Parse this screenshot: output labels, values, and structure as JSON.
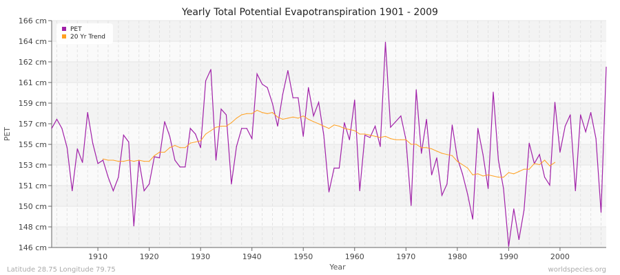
{
  "chart_data": {
    "type": "line",
    "title": "Yearly Total Potential Evapotranspiration 1901 - 2009",
    "xlabel": "Year",
    "ylabel": "PET",
    "xlim": [
      1901,
      2009
    ],
    "ylim": [
      146,
      166
    ],
    "x_ticks": [
      1910,
      1920,
      1930,
      1940,
      1950,
      1960,
      1970,
      1980,
      1990,
      2000
    ],
    "y_tick_labels": [
      "146 cm",
      "148 cm",
      "150 cm",
      "151 cm",
      "153 cm",
      "155 cm",
      "157 cm",
      "159 cm",
      "161 cm",
      "162 cm",
      "164 cm",
      "166 cm"
    ],
    "grid": true,
    "legend_placement": "top-left",
    "series": [
      {
        "name": "PET",
        "color": "#a020a8",
        "x_start": 1901,
        "values": [
          156.5,
          157.3,
          156.5,
          154.8,
          151.0,
          154.7,
          153.5,
          157.9,
          155.2,
          153.4,
          153.7,
          152.2,
          151.0,
          152.2,
          155.9,
          155.3,
          147.9,
          153.7,
          151.0,
          151.6,
          154.0,
          153.9,
          157.1,
          155.8,
          153.7,
          153.1,
          153.1,
          156.5,
          156.0,
          154.8,
          160.7,
          161.7,
          153.7,
          158.2,
          157.7,
          151.6,
          154.9,
          156.5,
          156.5,
          155.6,
          161.3,
          160.4,
          160.1,
          158.7,
          156.7,
          159.5,
          161.6,
          159.2,
          159.2,
          155.8,
          160.1,
          157.6,
          158.8,
          155.9,
          150.9,
          153.0,
          153.0,
          157.0,
          155.5,
          159.0,
          151.0,
          155.9,
          155.7,
          156.7,
          154.9,
          164.1,
          156.6,
          157.1,
          157.6,
          155.5,
          149.7,
          159.9,
          154.3,
          157.3,
          152.4,
          153.9,
          150.6,
          151.6,
          156.8,
          153.9,
          152.5,
          150.7,
          148.5,
          156.5,
          154.2,
          151.2,
          159.7,
          153.7,
          151.2,
          146.1,
          149.4,
          146.7,
          149.3,
          155.2,
          153.4,
          154.2,
          152.2,
          151.5,
          158.8,
          154.4,
          156.7,
          157.7,
          151.0,
          157.7,
          156.2,
          157.9,
          155.6,
          149.1,
          161.9
        ]
      },
      {
        "name": "20 Yr Trend",
        "color": "#ffa020",
        "x_start": 1911,
        "values": [
          153.8,
          153.7,
          153.7,
          153.6,
          153.6,
          153.7,
          153.6,
          153.7,
          153.6,
          153.6,
          154.1,
          154.4,
          154.4,
          154.8,
          155.0,
          154.8,
          154.8,
          155.2,
          155.3,
          155.4,
          156.0,
          156.3,
          156.6,
          156.7,
          156.7,
          157.0,
          157.4,
          157.7,
          157.8,
          157.8,
          158.1,
          157.9,
          157.8,
          157.9,
          157.5,
          157.3,
          157.4,
          157.5,
          157.4,
          157.6,
          157.3,
          157.1,
          156.9,
          156.7,
          156.5,
          156.8,
          156.7,
          156.5,
          156.4,
          156.3,
          156.0,
          156.0,
          155.9,
          155.8,
          155.7,
          155.8,
          155.6,
          155.5,
          155.5,
          155.5,
          155.1,
          155.1,
          154.8,
          154.8,
          154.7,
          154.5,
          154.3,
          154.2,
          154.1,
          153.6,
          153.3,
          153.0,
          152.4,
          152.5,
          152.3,
          152.4,
          152.3,
          152.2,
          152.2,
          152.6,
          152.5,
          152.7,
          152.9,
          152.9,
          153.4,
          153.3,
          153.7,
          153.2,
          153.5
        ]
      }
    ]
  },
  "footer": {
    "location": "Latitude 28.75 Longitude 79.75",
    "credit": "worldspecies.org"
  }
}
